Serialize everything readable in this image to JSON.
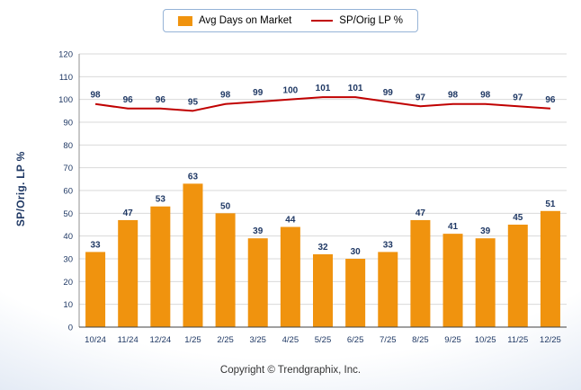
{
  "legend": {
    "bar_label": "Avg Days on Market",
    "line_label": "SP/Orig LP %"
  },
  "ylabel": "SP/Orig. LP %",
  "footer": "Copyright © Trendgraphix, Inc.",
  "colors": {
    "bar": "#f0930e",
    "line": "#c00000",
    "data_label": "#1f3864",
    "tick_label": "#1f3864",
    "grid": "#d9d9d9",
    "axis_left": "#909090",
    "axis_bottom": "#404040",
    "legend_border": "#95b3d7",
    "background_edge": "#ccd9ec"
  },
  "chart_data": {
    "type": "bar",
    "subtype": "bar+line combo",
    "categories": [
      "10/24",
      "11/24",
      "12/24",
      "1/25",
      "2/25",
      "3/25",
      "4/25",
      "5/25",
      "6/25",
      "7/25",
      "8/25",
      "9/25",
      "10/25",
      "11/25",
      "12/25"
    ],
    "series": [
      {
        "name": "Avg Days on Market",
        "type": "bar",
        "values": [
          33,
          47,
          53,
          63,
          50,
          39,
          44,
          32,
          30,
          33,
          47,
          41,
          39,
          45,
          51
        ],
        "color": "#f0930e"
      },
      {
        "name": "SP/Orig LP %",
        "type": "line",
        "values": [
          98,
          96,
          96,
          95,
          98,
          99,
          100,
          101,
          101,
          99,
          97,
          98,
          98,
          97,
          96
        ],
        "color": "#c00000"
      }
    ],
    "title": "",
    "xlabel": "",
    "ylabel": "SP/Orig. LP %",
    "ylim": [
      0,
      120
    ],
    "ytick_step": 10,
    "grid": "horizontal",
    "legend_position": "top-center",
    "data_labels": "on"
  }
}
